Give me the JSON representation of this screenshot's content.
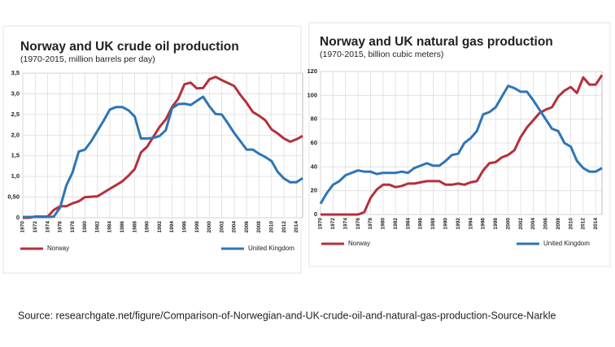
{
  "chart_data": [
    {
      "type": "line",
      "title": "Norway and UK crude oil production",
      "subtitle": "(1970-2015, million barrels per day)",
      "x": [
        1970,
        1971,
        1972,
        1973,
        1974,
        1975,
        1976,
        1977,
        1978,
        1979,
        1980,
        1981,
        1982,
        1983,
        1984,
        1985,
        1986,
        1987,
        1988,
        1989,
        1990,
        1991,
        1992,
        1993,
        1994,
        1995,
        1996,
        1997,
        1998,
        1999,
        2000,
        2001,
        2002,
        2003,
        2004,
        2005,
        2006,
        2007,
        2008,
        2009,
        2010,
        2011,
        2012,
        2013,
        2014,
        2015
      ],
      "series": [
        {
          "name": "Norway",
          "color": "#b5303a",
          "values": [
            0,
            0,
            0.03,
            0.03,
            0.03,
            0.19,
            0.28,
            0.28,
            0.35,
            0.4,
            0.5,
            0.51,
            0.52,
            0.61,
            0.7,
            0.79,
            0.88,
            1.02,
            1.18,
            1.58,
            1.72,
            1.96,
            2.2,
            2.38,
            2.68,
            2.88,
            3.23,
            3.27,
            3.13,
            3.14,
            3.35,
            3.41,
            3.33,
            3.26,
            3.19,
            2.97,
            2.78,
            2.56,
            2.47,
            2.36,
            2.14,
            2.04,
            1.92,
            1.84,
            1.9,
            1.98
          ]
        },
        {
          "name": "United Kingdom",
          "color": "#2e75b6",
          "values": [
            0.02,
            0.02,
            0.02,
            0.02,
            0.02,
            0.03,
            0.25,
            0.78,
            1.1,
            1.6,
            1.65,
            1.85,
            2.1,
            2.35,
            2.62,
            2.68,
            2.68,
            2.6,
            2.45,
            1.92,
            1.92,
            1.93,
            1.98,
            2.12,
            2.65,
            2.75,
            2.76,
            2.73,
            2.83,
            2.93,
            2.7,
            2.51,
            2.5,
            2.28,
            2.05,
            1.85,
            1.65,
            1.65,
            1.55,
            1.47,
            1.37,
            1.11,
            0.95,
            0.86,
            0.86,
            0.96
          ]
        }
      ],
      "xlim": [
        1970,
        2015
      ],
      "xticks": [
        1970,
        1972,
        1974,
        1976,
        1978,
        1980,
        1982,
        1984,
        1986,
        1988,
        1990,
        1992,
        1994,
        1996,
        1998,
        2000,
        2002,
        2004,
        2006,
        2008,
        2010,
        2012,
        2014
      ],
      "ylim": [
        0,
        3.5
      ],
      "yticks": [
        0,
        {
          "value": 0.5,
          "label": "0,50"
        },
        {
          "value": 1,
          "label": "1,0"
        },
        {
          "value": 1.5,
          "label": "1,5"
        },
        {
          "value": 2,
          "label": "2,0"
        },
        {
          "value": 2.5,
          "label": "2,5"
        },
        {
          "value": 3,
          "label": "3,0"
        },
        {
          "value": 3.5,
          "label": "3,5"
        }
      ],
      "grid": true,
      "legend": "bottom"
    },
    {
      "type": "line",
      "title": "Norway and UK natural gas production",
      "subtitle": "(1970-2015, billion cubic meters)",
      "x": [
        1970,
        1971,
        1972,
        1973,
        1974,
        1975,
        1976,
        1977,
        1978,
        1979,
        1980,
        1981,
        1982,
        1983,
        1984,
        1985,
        1986,
        1987,
        1988,
        1989,
        1990,
        1991,
        1992,
        1993,
        1994,
        1995,
        1996,
        1997,
        1998,
        1999,
        2000,
        2001,
        2002,
        2003,
        2004,
        2005,
        2006,
        2007,
        2008,
        2009,
        2010,
        2011,
        2012,
        2013,
        2014,
        2015
      ],
      "series": [
        {
          "name": "Norway",
          "color": "#b5303a",
          "values": [
            0,
            0,
            0,
            0,
            0,
            0,
            0,
            2,
            14,
            21,
            25,
            25,
            23,
            24,
            26,
            26,
            27,
            28,
            28,
            28,
            25,
            25,
            26,
            25,
            27,
            28,
            37,
            43,
            44,
            48,
            50,
            54,
            65,
            73,
            79,
            85,
            88,
            90,
            99,
            104,
            107,
            102,
            115,
            109,
            109,
            117
          ]
        },
        {
          "name": "United Kingdom",
          "color": "#2e75b6",
          "values": [
            9,
            18,
            25,
            28,
            33,
            35,
            37,
            36,
            36,
            34,
            35,
            35,
            35,
            36,
            35,
            39,
            41,
            43,
            41,
            41,
            45,
            50,
            51,
            60,
            64,
            70,
            84,
            86,
            90,
            99,
            108,
            106,
            103,
            103,
            96,
            88,
            80,
            72,
            70,
            60,
            57,
            45,
            39,
            36,
            36,
            39
          ]
        }
      ],
      "xlim": [
        1970,
        2015
      ],
      "xticks": [
        1970,
        1972,
        1974,
        1976,
        1978,
        1980,
        1982,
        1984,
        1986,
        1988,
        1990,
        1992,
        1994,
        1996,
        1998,
        2000,
        2002,
        2004,
        2006,
        2008,
        2010,
        2012,
        2014
      ],
      "ylim": [
        0,
        120
      ],
      "yticks": [
        0,
        20,
        40,
        60,
        80,
        100,
        120
      ],
      "grid": true,
      "legend": "bottom"
    }
  ],
  "source": "Source: researchgate.net/figure/Comparison-of-Norwegian-and-UK-crude-oil-and-natural-gas-production-Source-Narkle"
}
